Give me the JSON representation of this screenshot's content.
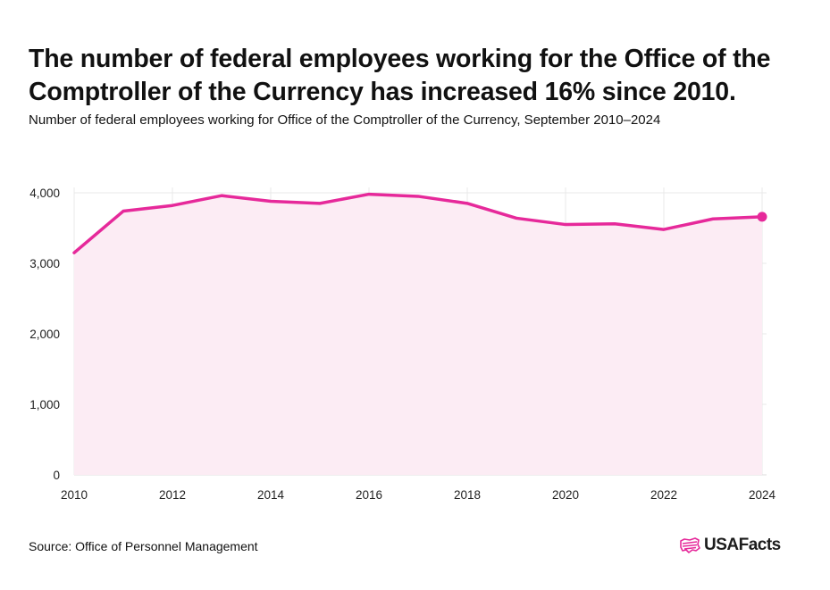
{
  "header": {
    "title": "The number of federal employees working for the Office of the Comptroller of the Currency has increased 16% since 2010.",
    "subtitle": "Number of federal employees working for Office of the Comptroller of the Currency, September 2010–2024"
  },
  "footer": {
    "source": "Source: Office of Personnel Management",
    "logo_text": "USAFacts"
  },
  "colors": {
    "line": "#e6299a",
    "area": "#fcecf4",
    "grid": "#e9e9e9"
  },
  "chart_data": {
    "type": "area",
    "title": "The number of federal employees working for the Office of the Comptroller of the Currency has increased 16% since 2010.",
    "subtitle": "Number of federal employees working for Office of the Comptroller of the Currency, September 2010–2024",
    "x": [
      2010,
      2011,
      2012,
      2013,
      2014,
      2015,
      2016,
      2017,
      2018,
      2019,
      2020,
      2021,
      2022,
      2023,
      2024
    ],
    "series": [
      {
        "values": [
          3150,
          3740,
          3820,
          3960,
          3880,
          3850,
          3980,
          3950,
          3850,
          3640,
          3550,
          3560,
          3480,
          3630,
          3660
        ]
      }
    ],
    "x_ticks": [
      "2010",
      "2012",
      "2014",
      "2016",
      "2018",
      "2020",
      "2022",
      "2024"
    ],
    "y_ticks": [
      "0",
      "1,000",
      "2,000",
      "3,000",
      "4,000"
    ],
    "xlim": [
      2010,
      2024
    ],
    "ylim": [
      0,
      4000
    ],
    "grid": true,
    "xlabel": "",
    "ylabel": "",
    "last_point_marker": true
  }
}
